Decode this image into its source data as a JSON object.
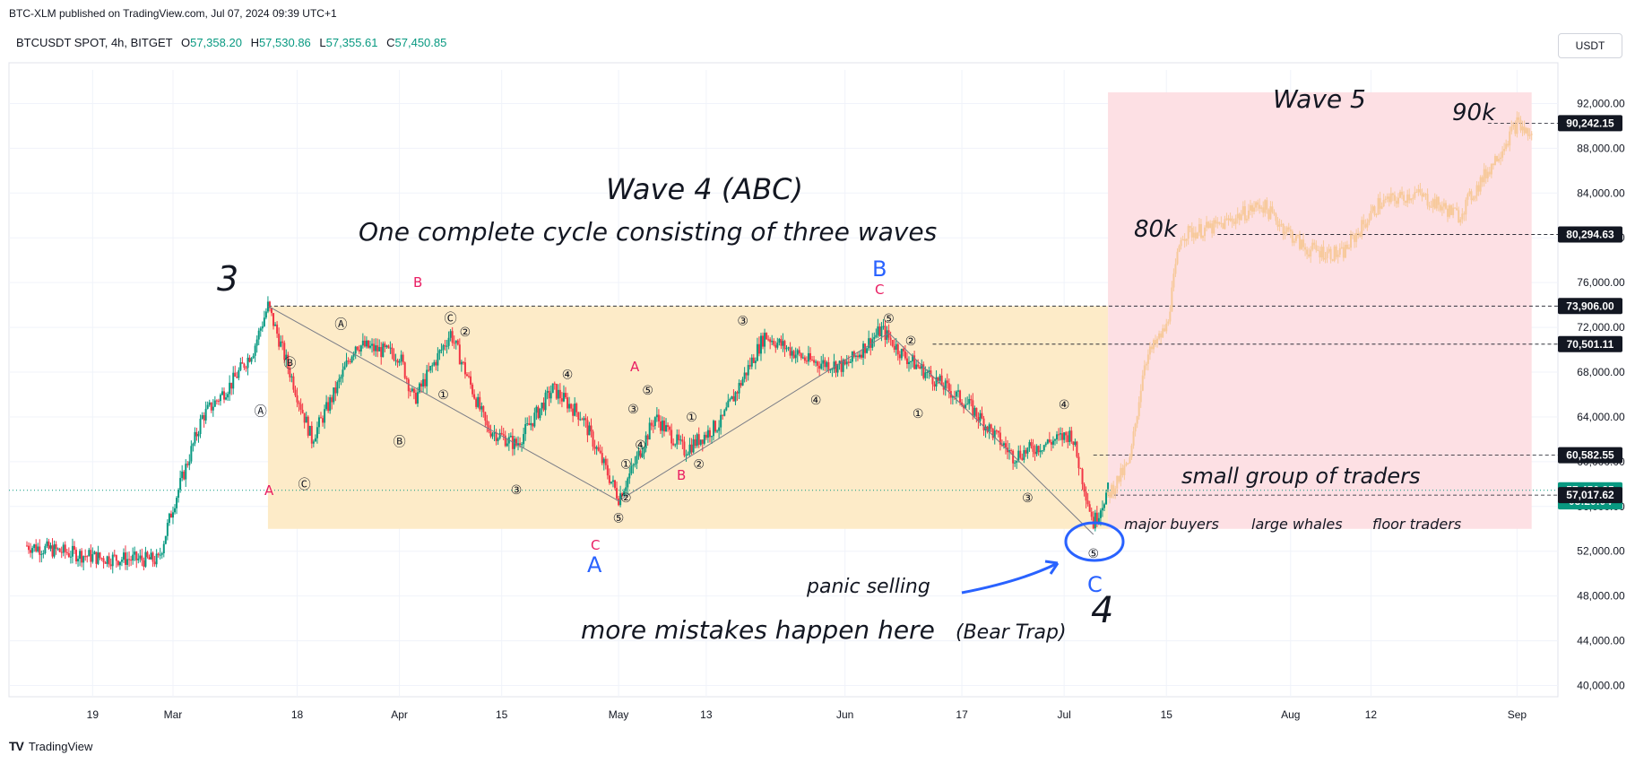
{
  "header": {
    "published": "BTC-XLM published on TradingView.com, Jul 07, 2024 09:39 UTC+1",
    "symbol": "BTCUSDT SPOT, 4h, BITGET",
    "o_label": "O",
    "o": "57,358.20",
    "h_label": "H",
    "h": "57,530.86",
    "l_label": "L",
    "l": "57,355.61",
    "c_label": "C",
    "c": "57,450.85",
    "unit": "USDT"
  },
  "footer": {
    "logo": "TV",
    "brand": "TradingView"
  },
  "colors": {
    "up": "#089981",
    "down": "#f23645",
    "box_orange": "#fdebc8",
    "box_red": "#fde0e4",
    "wave_blue": "#2962ff",
    "wave_red": "#e91e63",
    "projection": "#f7c99a"
  },
  "chart_data": {
    "type": "candlestick",
    "ylim": [
      39000,
      95000
    ],
    "yticks": [
      "40,000.00",
      "44,000.00",
      "48,000.00",
      "52,000.00",
      "56,000.00",
      "60,000.00",
      "64,000.00",
      "68,000.00",
      "72,000.00",
      "76,000.00",
      "80,000.00",
      "84,000.00",
      "88,000.00",
      "92,000.00"
    ],
    "xticks": [
      "19",
      "Mar",
      "18",
      "Apr",
      "15",
      "May",
      "13",
      "Jun",
      "17",
      "Jul",
      "15",
      "Aug",
      "12",
      "Sep"
    ],
    "price_tags": [
      {
        "label": "90,242.15",
        "value": 90242.15,
        "style": "dark"
      },
      {
        "label": "80,294.63",
        "value": 80294.63,
        "style": "dark"
      },
      {
        "label": "73,906.00",
        "value": 73906,
        "style": "dark"
      },
      {
        "label": "70,501.11",
        "value": 70501.11,
        "style": "dark"
      },
      {
        "label": "60,582.55",
        "value": 60582.55,
        "style": "dark"
      },
      {
        "label": "57,450.85",
        "value": 57450.85,
        "style": "green"
      },
      {
        "label": "03:20:04",
        "value": 56450,
        "style": "green"
      },
      {
        "label": "57,017.62",
        "value": 57017.62,
        "style": "dark"
      }
    ],
    "path_points": [
      [
        "Feb 10",
        52500
      ],
      [
        "Feb 20",
        51400
      ],
      [
        "Feb 28",
        51200
      ],
      [
        "Mar 1",
        56000
      ],
      [
        "Mar 5",
        64000
      ],
      [
        "Mar 9",
        67000
      ],
      [
        "Mar 12",
        70000
      ],
      [
        "Mar 14",
        73906
      ],
      [
        "Mar 17",
        68000
      ],
      [
        "Mar 20",
        62000
      ],
      [
        "Mar 23",
        66000
      ],
      [
        "Mar 26",
        70500
      ],
      [
        "Apr 1",
        69500
      ],
      [
        "Apr 3",
        65500
      ],
      [
        "Apr 8",
        71500
      ],
      [
        "Apr 13",
        63000
      ],
      [
        "Apr 17",
        61500
      ],
      [
        "Apr 22",
        66500
      ],
      [
        "Apr 26",
        64000
      ],
      [
        "May 1",
        56800
      ],
      [
        "May 3",
        59500
      ],
      [
        "May 6",
        64000
      ],
      [
        "May 10",
        61000
      ],
      [
        "May 15",
        63500
      ],
      [
        "May 21",
        71300
      ],
      [
        "May 27",
        69000
      ],
      [
        "Jun 1",
        68500
      ],
      [
        "Jun 6",
        71800
      ],
      [
        "Jun 9",
        69500
      ],
      [
        "Jun 13",
        67500
      ],
      [
        "Jun 18",
        65000
      ],
      [
        "Jun 24",
        60500
      ],
      [
        "Jun 28",
        61500
      ],
      [
        "Jul 2",
        62500
      ],
      [
        "Jul 5",
        54500
      ],
      [
        "Jul 7",
        57450
      ]
    ],
    "projection_points": [
      [
        "Jul 7",
        57017
      ],
      [
        "Jul 10",
        60000
      ],
      [
        "Jul 12",
        69000
      ],
      [
        "Jul 15",
        72000
      ],
      [
        "Jul 17",
        80294
      ],
      [
        "Jul 22",
        81000
      ],
      [
        "Jul 28",
        83000
      ],
      [
        "Aug 3",
        79000
      ],
      [
        "Aug 8",
        78500
      ],
      [
        "Aug 13",
        83000
      ],
      [
        "Aug 18",
        84000
      ],
      [
        "Aug 24",
        82000
      ],
      [
        "Aug 28",
        86000
      ],
      [
        "Sep 1",
        90242
      ],
      [
        "Sep 3",
        89000
      ]
    ],
    "boxes": [
      {
        "name": "wave-4-range",
        "from": "Mar 14",
        "to": "Jul 7",
        "y_top": 73906,
        "y_bottom": 54000,
        "color": "#fdebc8"
      },
      {
        "name": "wave-5-zone",
        "from": "Jul 7",
        "to": "Sep 3",
        "y_top": 93000,
        "y_bottom": 54000,
        "color": "#fde0e4"
      }
    ],
    "levels": [
      {
        "from": "Mar 14",
        "to": "Sep 3",
        "value": 73906
      },
      {
        "from": "Jun 13",
        "to": "Sep 3",
        "value": 70501.11
      },
      {
        "from": "Jul 5",
        "to": "Sep 3",
        "value": 60582.55
      },
      {
        "from": "Jul 7",
        "to": "Sep 3",
        "value": 57017.62
      },
      {
        "from": "Jul 22",
        "to": "Sep 3",
        "value": 80294.63
      },
      {
        "from": "Aug 28",
        "to": "Sep 3",
        "value": 90242.15
      }
    ],
    "zigzag": [
      [
        "Mar 14",
        73906
      ],
      [
        "May 1",
        56500
      ],
      [
        "Jun 7",
        71500
      ],
      [
        "Jul 5",
        53500
      ]
    ]
  },
  "annotations": {
    "title": "Wave 4 (ABC)",
    "subtitle": "One complete cycle consisting of three waves",
    "wave5": "Wave 5",
    "target_90k": "90k",
    "target_80k": "80k",
    "small_group": "small group of traders",
    "major_buyers": "major buyers",
    "large_whales": "large whales",
    "floor_traders": "floor traders",
    "panic": "panic selling",
    "mistakes": "more mistakes happen here",
    "bear_trap": "(Bear Trap)",
    "label_3": "3",
    "label_4": "4",
    "big_A": "A",
    "big_B": "B",
    "big_C": "C",
    "red_A": "A",
    "red_B": "B",
    "red_C": "C"
  },
  "wave_marks": [
    {
      "t": "Ⓐ",
      "d": "Mar 13",
      "v": 64500
    },
    {
      "t": "Ⓑ",
      "d": "Mar 17",
      "v": 68800
    },
    {
      "t": "Ⓒ",
      "d": "Mar 19",
      "v": 58000
    },
    {
      "t": "Ⓐ",
      "d": "Mar 24",
      "v": 72300
    },
    {
      "t": "Ⓒ",
      "d": "Apr 8",
      "v": 72800
    },
    {
      "t": "②",
      "d": "Apr 10",
      "v": 71600
    },
    {
      "t": "①",
      "d": "Apr 7",
      "v": 66000
    },
    {
      "t": "Ⓑ",
      "d": "Apr 1",
      "v": 61800
    },
    {
      "t": "③",
      "d": "Apr 17",
      "v": 57500
    },
    {
      "t": "④",
      "d": "Apr 24",
      "v": 67800
    },
    {
      "t": "⑤",
      "d": "May 1",
      "v": 55000
    },
    {
      "t": "①",
      "d": "May 2",
      "v": 59800
    },
    {
      "t": "②",
      "d": "May 2",
      "v": 56800
    },
    {
      "t": "③",
      "d": "May 3",
      "v": 64700
    },
    {
      "t": "④",
      "d": "May 4",
      "v": 61500
    },
    {
      "t": "⑤",
      "d": "May 5",
      "v": 66400
    },
    {
      "t": "①",
      "d": "May 11",
      "v": 64000
    },
    {
      "t": "②",
      "d": "May 12",
      "v": 59800
    },
    {
      "t": "③",
      "d": "May 18",
      "v": 72600
    },
    {
      "t": "④",
      "d": "May 28",
      "v": 65500
    },
    {
      "t": "⑤",
      "d": "Jun 7",
      "v": 72800
    },
    {
      "t": "②",
      "d": "Jun 10",
      "v": 70800
    },
    {
      "t": "①",
      "d": "Jun 11",
      "v": 64300
    },
    {
      "t": "③",
      "d": "Jun 26",
      "v": 56800
    },
    {
      "t": "④",
      "d": "Jul 1",
      "v": 65100
    },
    {
      "t": "⑤",
      "d": "Jul 5",
      "v": 51800
    }
  ]
}
